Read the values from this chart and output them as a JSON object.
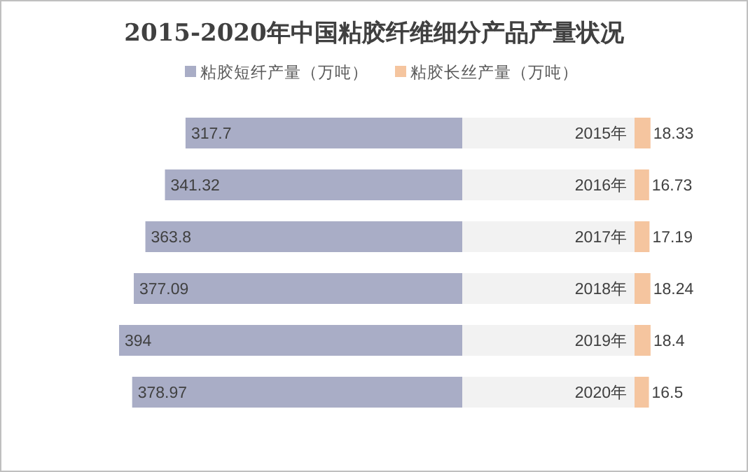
{
  "chart_data": [
    {
      "type": "bar",
      "orientation": "horizontal",
      "title": "2015-2020年中国粘胶纤维细分产品产量状况",
      "categories": [
        "2015年",
        "2016年",
        "2017年",
        "2018年",
        "2019年",
        "2020年"
      ],
      "series": [
        {
          "name": "粘胶短纤产量（万吨）",
          "color": "#a9adc6",
          "values": [
            317.7,
            341.32,
            363.8,
            377.09,
            394,
            378.97
          ]
        }
      ],
      "data_labels": true,
      "legend": "top left"
    },
    {
      "type": "bar",
      "orientation": "horizontal",
      "categories": [
        null,
        null,
        null,
        null,
        null,
        null
      ],
      "series": [
        {
          "name": "粘胶长丝产量（万吨）",
          "color": "#f5c59f",
          "values": [
            18.33,
            16.73,
            17.19,
            18.24,
            18.4,
            16.5
          ]
        }
      ],
      "data_labels": true,
      "legend": "top left"
    }
  ]
}
